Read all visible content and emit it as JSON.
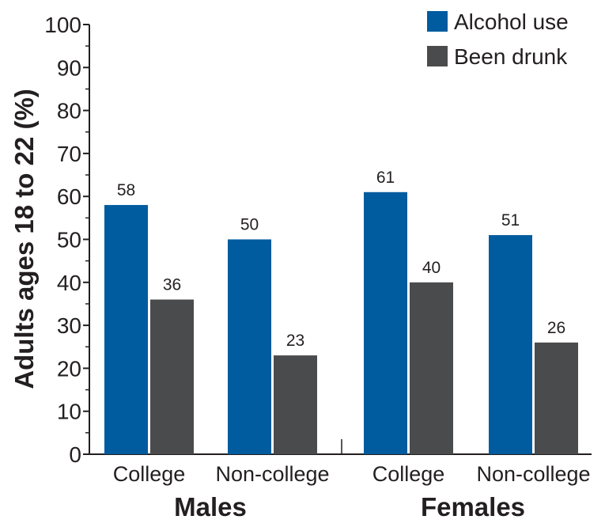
{
  "chart_data": {
    "type": "bar",
    "ylabel": "Adults ages 18 to 22 (%)",
    "ylim": [
      0,
      100
    ],
    "yticks": [
      0,
      10,
      20,
      30,
      40,
      50,
      60,
      70,
      80,
      90,
      100
    ],
    "groups": [
      "Males",
      "Females"
    ],
    "categories": [
      "College",
      "Non-college",
      "College",
      "Non-college"
    ],
    "series": [
      {
        "name": "Alcohol use",
        "color": "#005b9f",
        "values": [
          58,
          50,
          61,
          51
        ]
      },
      {
        "name": "Been drunk",
        "color": "#4a4b4d",
        "values": [
          36,
          23,
          40,
          26
        ]
      }
    ],
    "legend_position": "top-right"
  }
}
